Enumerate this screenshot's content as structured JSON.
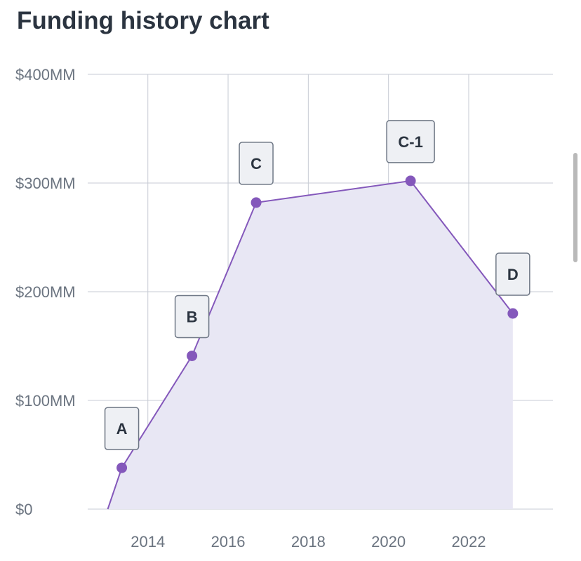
{
  "title": "Funding history chart",
  "chart_data": {
    "type": "area",
    "title": "Funding history chart",
    "xlabel": "",
    "ylabel": "",
    "xlim": [
      2012.5,
      2024.1
    ],
    "ylim": [
      0,
      400
    ],
    "x_ticks": [
      "2014",
      "2016",
      "2018",
      "2020",
      "2022"
    ],
    "y_ticks": [
      "$0",
      "$100MM",
      "$200MM",
      "$300MM",
      "$400MM"
    ],
    "grid": true,
    "points": [
      {
        "label": "",
        "x": 2013.0,
        "y": 0
      },
      {
        "label": "A",
        "x": 2013.35,
        "y": 38
      },
      {
        "label": "B",
        "x": 2015.1,
        "y": 141
      },
      {
        "label": "C",
        "x": 2016.7,
        "y": 282
      },
      {
        "label": "C-1",
        "x": 2020.55,
        "y": 302
      },
      {
        "label": "D",
        "x": 2023.1,
        "y": 180
      }
    ]
  },
  "colors": {
    "line": "#8458bb",
    "fill": "#e8e7f4",
    "grid": "#c7cbd4",
    "axis_text": "#6b7480",
    "label_bg": "#eef0f4",
    "label_border": "#6e7785"
  }
}
